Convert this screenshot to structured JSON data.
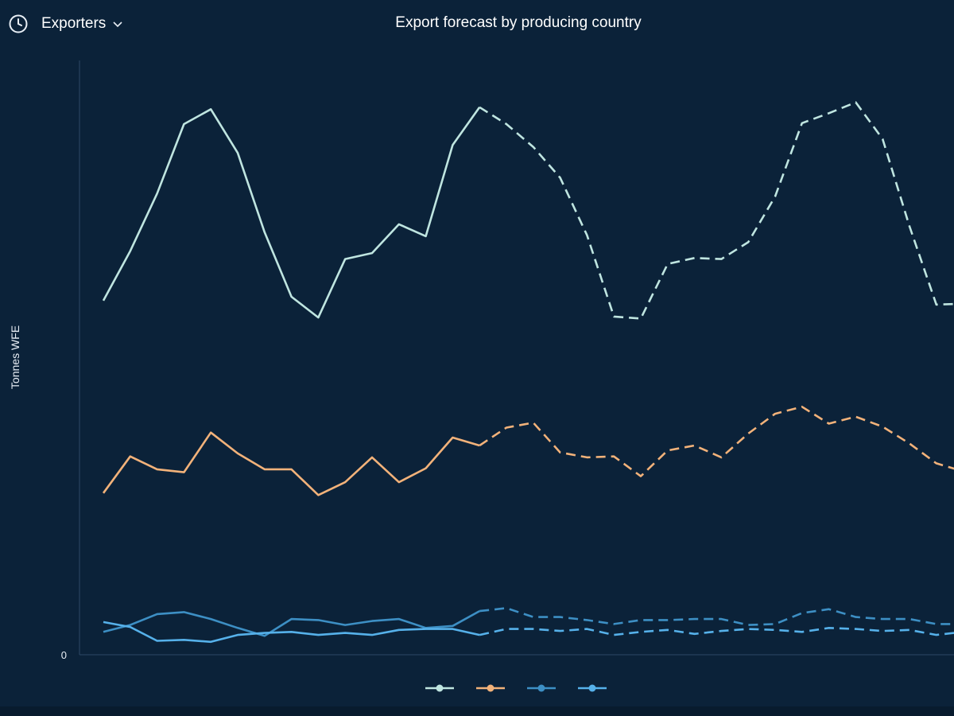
{
  "header": {
    "dropdown_label": "Exporters",
    "chart_title": "Export forecast by producing country"
  },
  "colors": {
    "background": "#0b2239",
    "series_1": "#bfe5e0",
    "series_2": "#f2b27a",
    "series_3": "#3d8fc4",
    "series_4": "#56b1ea"
  },
  "chart_data": {
    "type": "line",
    "title": "Export forecast by producing country",
    "ylabel": "Tonnes WFE",
    "y_ticks": [
      "0",
      "",
      "",
      "",
      "",
      "",
      ""
    ],
    "x_ticks": [
      "",
      "",
      "",
      "",
      "",
      "",
      "",
      "",
      "",
      "",
      ""
    ],
    "x_tick_index": [
      1,
      4,
      7,
      10,
      13,
      16,
      19,
      22,
      25,
      28,
      31
    ],
    "ylim": [
      0,
      6
    ],
    "forecast_start_index": 14,
    "grid": false,
    "legend_position": "bottom",
    "series": [
      {
        "name": "",
        "values": [
          3.57,
          4.07,
          4.65,
          5.35,
          5.5,
          5.06,
          4.26,
          3.61,
          3.4,
          3.99,
          4.05,
          4.34,
          4.22,
          5.14,
          5.52,
          5.35,
          5.12,
          4.81,
          4.23,
          3.41,
          3.39,
          3.94,
          4.0,
          3.99,
          4.16,
          4.62,
          5.36,
          5.46,
          5.57,
          5.2,
          4.32,
          3.53,
          3.54
        ],
        "color": "#bfe5e0"
      },
      {
        "name": "",
        "values": [
          1.63,
          2.0,
          1.87,
          1.84,
          2.24,
          2.03,
          1.87,
          1.87,
          1.61,
          1.74,
          1.99,
          1.74,
          1.88,
          2.19,
          2.11,
          2.29,
          2.34,
          2.04,
          1.99,
          2.0,
          1.8,
          2.06,
          2.11,
          1.99,
          2.23,
          2.43,
          2.5,
          2.33,
          2.4,
          2.3,
          2.13,
          1.93,
          1.85
        ],
        "color": "#f2b27a"
      },
      {
        "name": "",
        "values": [
          0.23,
          0.3,
          0.41,
          0.43,
          0.36,
          0.27,
          0.19,
          0.36,
          0.35,
          0.3,
          0.34,
          0.36,
          0.27,
          0.29,
          0.44,
          0.47,
          0.38,
          0.38,
          0.35,
          0.31,
          0.35,
          0.35,
          0.36,
          0.36,
          0.3,
          0.31,
          0.42,
          0.46,
          0.38,
          0.36,
          0.36,
          0.31,
          0.31
        ],
        "color": "#3d8fc4"
      },
      {
        "name": "",
        "values": [
          0.33,
          0.28,
          0.14,
          0.15,
          0.13,
          0.2,
          0.22,
          0.23,
          0.2,
          0.22,
          0.2,
          0.25,
          0.26,
          0.26,
          0.2,
          0.26,
          0.26,
          0.24,
          0.26,
          0.2,
          0.23,
          0.25,
          0.21,
          0.24,
          0.26,
          0.25,
          0.23,
          0.27,
          0.26,
          0.24,
          0.25,
          0.2,
          0.23
        ],
        "color": "#56b1ea"
      }
    ]
  }
}
